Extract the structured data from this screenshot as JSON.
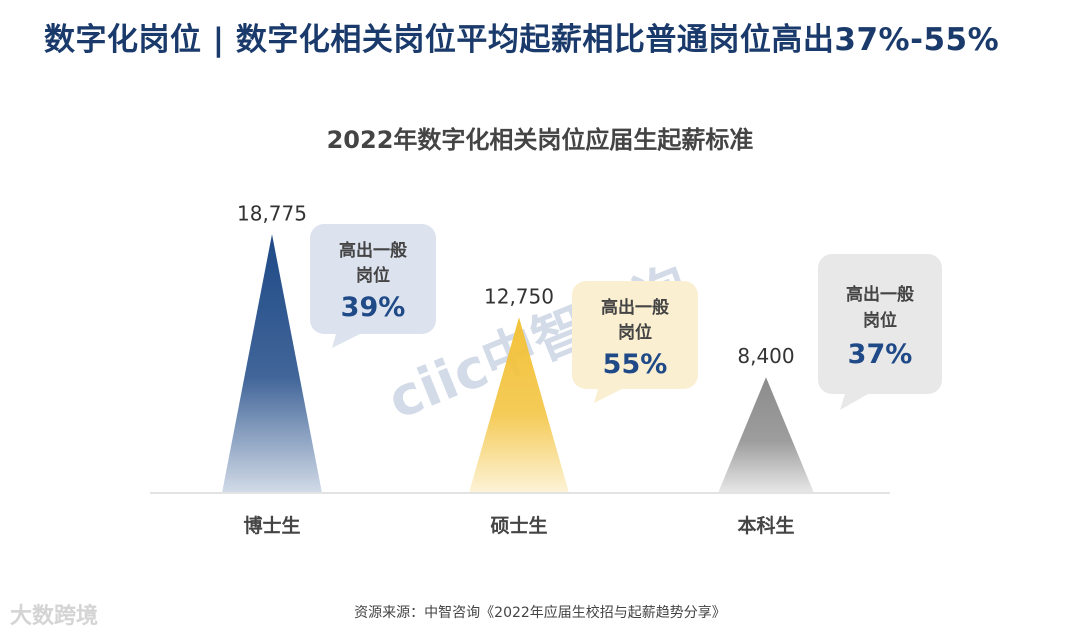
{
  "header": {
    "title": "数字化岗位 | 数字化相关岗位平均起薪相比普通岗位高出37%-55%"
  },
  "chart_data": {
    "type": "bar",
    "title": "2022年数字化相关岗位应届生起薪标准",
    "categories": [
      "博士生",
      "硕士生",
      "本科生"
    ],
    "values": [
      18775,
      12750,
      8400
    ],
    "value_labels": [
      "18,775",
      "12,750",
      "8,400"
    ],
    "ylim": [
      0,
      20000
    ],
    "grid": false,
    "bar_shape": "triangle",
    "colors": [
      "#1f4a87",
      "#f3c23a",
      "#8c8c8c"
    ],
    "callouts": [
      {
        "line1": "高出一般",
        "line2": "岗位",
        "percent": "39%",
        "bg": "#dce3ee"
      },
      {
        "line1": "高出一般",
        "line2": "岗位",
        "percent": "55%",
        "bg": "#fbefd2"
      },
      {
        "line1": "高出一般",
        "line2": "岗位",
        "percent": "37%",
        "bg": "#e8e8e8"
      }
    ]
  },
  "watermark": {
    "brand": "ciic中智咨询"
  },
  "bottom_watermark": {
    "text": "大数跨境"
  },
  "source": {
    "text": "资源来源：中智咨询《2022年应届生校招与起薪趋势分享》"
  }
}
